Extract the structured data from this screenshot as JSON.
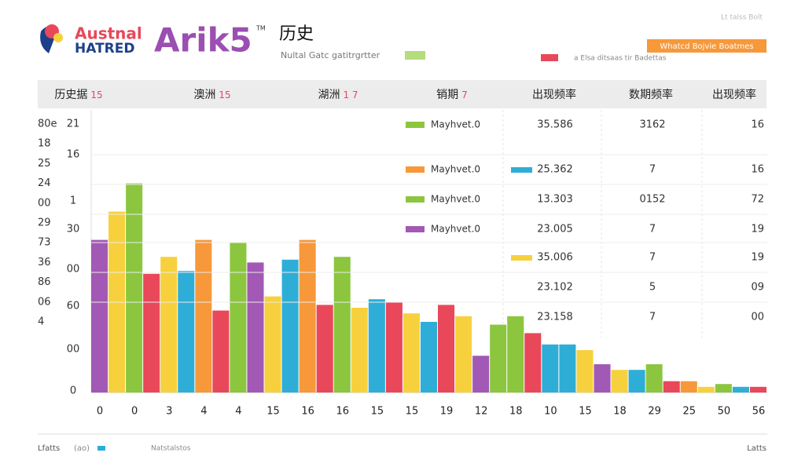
{
  "header": {
    "brand_top": "Austnal",
    "brand_bottom": "HATRED",
    "logo": "Arik5",
    "trademark": "TM",
    "title": "历史",
    "subtitle": "Nultal Gatc gatitrgrtter",
    "badge": "Whatcd Bojvie Boatmes",
    "note": "a Elsa ditsaas tir Badettas",
    "corner": "Lt talss Bolt"
  },
  "table": {
    "columns": [
      {
        "text": "历史据",
        "tag": "15"
      },
      {
        "text": "澳洲",
        "tag": "15"
      },
      {
        "text": "湖洲",
        "tag": "1 7"
      },
      {
        "text": "销期",
        "tag": "7"
      },
      {
        "text": "出现频率"
      },
      {
        "text": "数期频率"
      },
      {
        "text": "出现频率"
      }
    ],
    "rows": [
      {
        "swatch": "#8cc63f",
        "name": "Mayhvet.0",
        "value": "35.586",
        "count": "3162",
        "rate": "16"
      },
      {
        "swatch": "#f7983a",
        "name": "Mayhvet.0",
        "swatch2": "#2eaed6",
        "value": "25.362",
        "count": "7",
        "rate": "16"
      },
      {
        "swatch": "#8cc63f",
        "name": "Mayhvet.0",
        "value": "13.303",
        "count": "0152",
        "rate": "72"
      },
      {
        "swatch": "#a259b5",
        "name": "Mayhvet.0",
        "value": "23.005",
        "count": "7",
        "rate": "19"
      },
      {
        "swatch2": "#f7d13d",
        "value": "35.006",
        "count": "7",
        "rate": "19"
      },
      {
        "value": "23.102",
        "count": "5",
        "rate": "09"
      },
      {
        "value": "23.158",
        "count": "7",
        "rate": "00"
      }
    ]
  },
  "left_axis": [
    "80e",
    "18",
    "25",
    "24",
    "00",
    "29",
    "73",
    "36",
    "86",
    "06",
    "4"
  ],
  "inner_axis": [
    "21",
    "16",
    "1",
    "30",
    "00",
    "60",
    "00",
    "0"
  ],
  "chart_data": {
    "type": "bar",
    "ylim": [
      0,
      100
    ],
    "categories": [
      "0",
      null,
      "0",
      null,
      "3",
      null,
      "4",
      null,
      "4",
      null,
      "15",
      null,
      "16",
      null,
      "16",
      null,
      "15",
      null,
      "15",
      null,
      "19",
      null,
      "12",
      null,
      "18",
      null,
      "10",
      null,
      "15",
      null,
      "18",
      null,
      "29",
      null,
      "25",
      null,
      "50",
      null,
      "56"
    ],
    "values": [
      54,
      64,
      74,
      42,
      48,
      43,
      54,
      29,
      53,
      46,
      34,
      47,
      54,
      31,
      48,
      30,
      33,
      32,
      28,
      25,
      31,
      27,
      13,
      24,
      27,
      21,
      17,
      17,
      15,
      10,
      8,
      8,
      10,
      4,
      4,
      2,
      3,
      2,
      2
    ],
    "colors": [
      "#a259b5",
      "#f7d13d",
      "#8cc63f",
      "#e8485a",
      "#f7d13d",
      "#2eaed6",
      "#f7983a",
      "#e8485a",
      "#8cc63f",
      "#a259b5",
      "#f7d13d",
      "#2eaed6",
      "#f7983a",
      "#e8485a",
      "#8cc63f",
      "#f7d13d",
      "#2eaed6",
      "#e8485a",
      "#f7d13d",
      "#2eaed6",
      "#e8485a",
      "#f7d13d",
      "#a259b5",
      "#8cc63f",
      "#8cc63f",
      "#e8485a",
      "#2eaed6",
      "#2eaed6",
      "#f7d13d",
      "#a259b5",
      "#f7d13d",
      "#2eaed6",
      "#8cc63f",
      "#e8485a",
      "#f7983a",
      "#f7d13d",
      "#8cc63f",
      "#2eaed6",
      "#e8485a"
    ]
  },
  "footer": {
    "left": "Lfatts",
    "paren": "(ao)",
    "legend": "Natstalstos",
    "right": "Latts"
  }
}
